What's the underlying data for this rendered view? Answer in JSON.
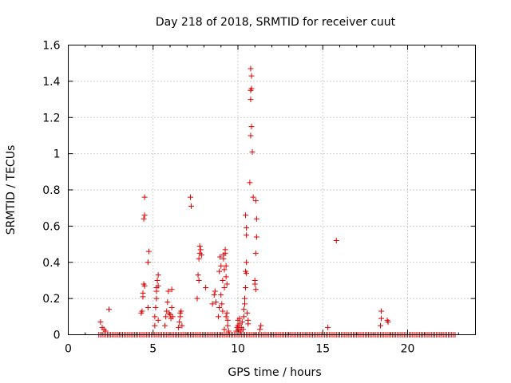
{
  "chart_data": {
    "type": "scatter",
    "title": "Day 218 of 2018, SRMTID for receiver cuut",
    "xlabel": "GPS time / hours",
    "ylabel": "SRMTID / TECUs",
    "xlim": [
      0,
      24
    ],
    "ylim": [
      0,
      1.6
    ],
    "xticks": [
      0,
      5,
      10,
      15,
      20
    ],
    "xtick_labels": [
      "0",
      "5",
      "10",
      "15",
      "20"
    ],
    "yticks": [
      0,
      0.2,
      0.4,
      0.6,
      0.8,
      1.0,
      1.2,
      1.4,
      1.6
    ],
    "ytick_labels": [
      "0",
      "0.2",
      "0.4",
      "0.6",
      "0.8",
      "1",
      "1.2",
      "1.4",
      "1.6"
    ],
    "grid": true,
    "series": [
      {
        "name": "SRMTID",
        "color": "#dd0000",
        "marker": "plus",
        "baseline": {
          "y": 0,
          "x_start": 1.8,
          "x_end": 22.8,
          "step": 0.1
        },
        "points": [
          [
            1.9,
            0.07
          ],
          [
            2.0,
            0.04
          ],
          [
            2.1,
            0.03
          ],
          [
            2.2,
            0.02
          ],
          [
            2.4,
            0.14
          ],
          [
            4.3,
            0.12
          ],
          [
            4.35,
            0.13
          ],
          [
            4.4,
            0.21
          ],
          [
            4.4,
            0.23
          ],
          [
            4.45,
            0.28
          ],
          [
            4.5,
            0.27
          ],
          [
            4.45,
            0.64
          ],
          [
            4.5,
            0.66
          ],
          [
            4.5,
            0.76
          ],
          [
            4.7,
            0.15
          ],
          [
            4.7,
            0.4
          ],
          [
            4.75,
            0.46
          ],
          [
            5.1,
            0.05
          ],
          [
            5.1,
            0.1
          ],
          [
            5.15,
            0.15
          ],
          [
            5.2,
            0.2
          ],
          [
            5.2,
            0.24
          ],
          [
            5.2,
            0.26
          ],
          [
            5.25,
            0.3
          ],
          [
            5.3,
            0.33
          ],
          [
            5.3,
            0.27
          ],
          [
            5.3,
            0.08
          ],
          [
            5.7,
            0.05
          ],
          [
            5.75,
            0.1
          ],
          [
            5.8,
            0.13
          ],
          [
            5.85,
            0.18
          ],
          [
            5.9,
            0.24
          ],
          [
            5.95,
            0.12
          ],
          [
            6.0,
            0.11
          ],
          [
            6.05,
            0.09
          ],
          [
            6.1,
            0.15
          ],
          [
            6.1,
            0.25
          ],
          [
            6.15,
            0.1
          ],
          [
            6.5,
            0.04
          ],
          [
            6.55,
            0.07
          ],
          [
            6.6,
            0.1
          ],
          [
            6.6,
            0.12
          ],
          [
            6.65,
            0.13
          ],
          [
            6.7,
            0.05
          ],
          [
            7.2,
            0.76
          ],
          [
            7.25,
            0.71
          ],
          [
            7.6,
            0.2
          ],
          [
            7.65,
            0.33
          ],
          [
            7.7,
            0.3
          ],
          [
            7.7,
            0.42
          ],
          [
            7.75,
            0.45
          ],
          [
            7.75,
            0.49
          ],
          [
            7.8,
            0.47
          ],
          [
            7.85,
            0.44
          ],
          [
            8.1,
            0.26
          ],
          [
            8.5,
            0.17
          ],
          [
            8.6,
            0.22
          ],
          [
            8.65,
            0.24
          ],
          [
            8.7,
            0.18
          ],
          [
            8.85,
            0.1
          ],
          [
            8.9,
            0.15
          ],
          [
            8.9,
            0.35
          ],
          [
            8.95,
            0.43
          ],
          [
            9.0,
            0.38
          ],
          [
            9.0,
            0.22
          ],
          [
            9.05,
            0.17
          ],
          [
            9.1,
            0.13
          ],
          [
            9.1,
            0.3
          ],
          [
            9.15,
            0.44
          ],
          [
            9.15,
            0.42
          ],
          [
            9.2,
            0.36
          ],
          [
            9.2,
            0.26
          ],
          [
            9.25,
            0.45
          ],
          [
            9.25,
            0.47
          ],
          [
            9.3,
            0.38
          ],
          [
            9.3,
            0.32
          ],
          [
            9.35,
            0.28
          ],
          [
            9.35,
            0.12
          ],
          [
            9.4,
            0.08
          ],
          [
            9.4,
            0.05
          ],
          [
            9.45,
            0.02
          ],
          [
            9.2,
            0.03
          ],
          [
            9.3,
            0.1
          ],
          [
            9.9,
            0.02
          ],
          [
            9.95,
            0.04
          ],
          [
            10.0,
            0.08
          ],
          [
            10.0,
            0.05
          ],
          [
            10.05,
            0.03
          ],
          [
            10.1,
            0.09
          ],
          [
            10.1,
            0.06
          ],
          [
            10.15,
            0.02
          ],
          [
            10.2,
            0.04
          ],
          [
            10.25,
            0.07
          ],
          [
            10.3,
            0.03
          ],
          [
            10.35,
            0.1
          ],
          [
            10.35,
            0.14
          ],
          [
            10.4,
            0.17
          ],
          [
            10.4,
            0.2
          ],
          [
            10.45,
            0.26
          ],
          [
            10.45,
            0.35
          ],
          [
            10.5,
            0.34
          ],
          [
            10.5,
            0.4
          ],
          [
            10.5,
            0.55
          ],
          [
            10.5,
            0.59
          ],
          [
            10.45,
            0.66
          ],
          [
            10.55,
            0.12
          ],
          [
            10.6,
            0.08
          ],
          [
            10.6,
            0.06
          ],
          [
            10.7,
            0.84
          ],
          [
            10.75,
            1.1
          ],
          [
            10.8,
            1.15
          ],
          [
            10.75,
            1.3
          ],
          [
            10.75,
            1.35
          ],
          [
            10.8,
            1.36
          ],
          [
            10.8,
            1.43
          ],
          [
            10.75,
            1.47
          ],
          [
            10.85,
            1.01
          ],
          [
            10.9,
            0.76
          ],
          [
            11.0,
            0.28
          ],
          [
            11.0,
            0.3
          ],
          [
            11.05,
            0.25
          ],
          [
            11.05,
            0.74
          ],
          [
            11.1,
            0.64
          ],
          [
            11.1,
            0.54
          ],
          [
            11.05,
            0.45
          ],
          [
            11.3,
            0.03
          ],
          [
            11.35,
            0.05
          ],
          [
            15.3,
            0.04
          ],
          [
            15.8,
            0.52
          ],
          [
            18.4,
            0.05
          ],
          [
            18.45,
            0.09
          ],
          [
            18.45,
            0.13
          ],
          [
            18.8,
            0.08
          ],
          [
            18.85,
            0.07
          ]
        ]
      }
    ]
  }
}
